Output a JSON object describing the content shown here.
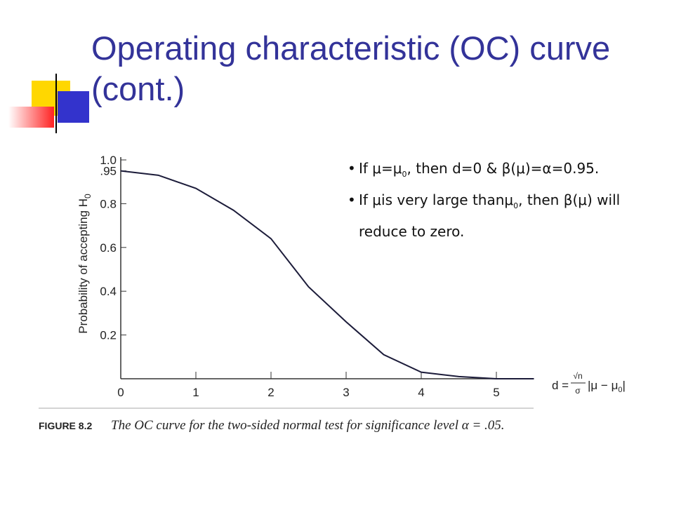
{
  "slide": {
    "title": "Operating characteristic (OC) curve (cont.)",
    "bullets": [
      [
        "If μ=μ",
        "0",
        ", then d=0 & β(μ)=α=0.95."
      ],
      [
        "If μis very large thanμ",
        "0",
        ", then β(μ) will reduce to zero."
      ]
    ]
  },
  "chart_data": {
    "type": "line",
    "y_label": [
      "Probability of accepting H",
      "0"
    ],
    "x_label": [
      "d = ",
      "√n",
      "σ",
      "|μ − μ",
      "0",
      "|"
    ],
    "caption": [
      "FIGURE 8.2",
      "The OC curve for the two-sided normal test for significance level α = .05."
    ],
    "x": [
      0,
      0.5,
      1,
      1.5,
      2,
      2.5,
      3,
      3.5,
      4,
      4.5,
      5,
      5.5
    ],
    "values": [
      0.95,
      0.93,
      0.87,
      0.77,
      0.64,
      0.42,
      0.26,
      0.11,
      0.03,
      0.01,
      0,
      0
    ],
    "color": "#1c1c3a",
    "xlim": [
      0,
      5.5
    ],
    "ylim": [
      0,
      1
    ],
    "xticks": [
      0,
      1,
      2,
      3,
      4,
      5
    ],
    "yticks": [
      {
        "value": 1,
        "label": "1.0"
      },
      {
        "value": 0.95,
        "label": ".95"
      },
      {
        "value": 0.8,
        "label": "0.8"
      },
      {
        "value": 0.6,
        "label": "0.6"
      },
      {
        "value": 0.4,
        "label": "0.4"
      },
      {
        "value": 0.2,
        "label": "0.2"
      }
    ]
  }
}
